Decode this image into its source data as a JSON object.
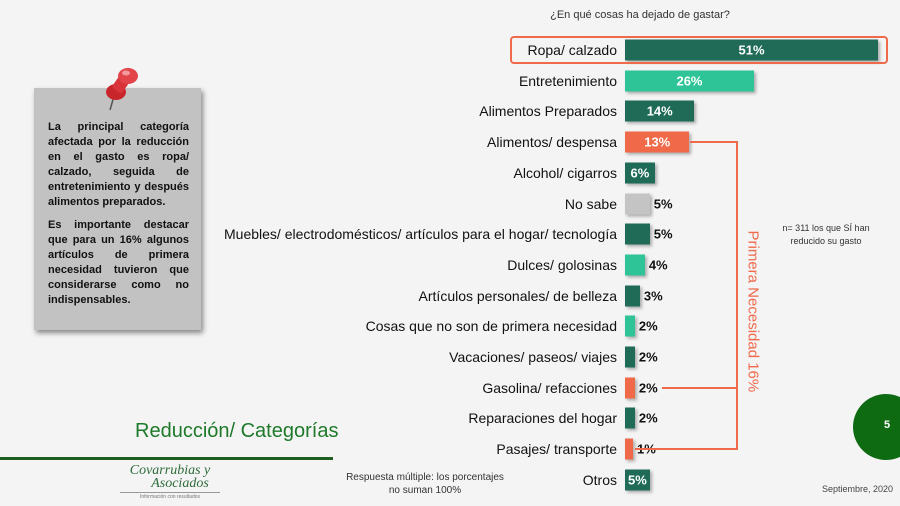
{
  "chart_data": {
    "type": "bar",
    "orientation": "horizontal",
    "title": "¿En qué cosas ha dejado de gastar?",
    "categories": [
      "Ropa/ calzado",
      "Entretenimiento",
      "Alimentos Preparados",
      "Alimentos/ despensa",
      "Alcohol/ cigarros",
      "No sabe",
      "Muebles/ electrodomésticos/ artículos para el hogar/ tecnología",
      "Dulces/ golosinas",
      "Artículos personales/ de belleza",
      "Cosas que no son de primera necesidad",
      "Vacaciones/ paseos/ viajes",
      "Gasolina/ refacciones",
      "Reparaciones del hogar",
      "Pasajes/ transporte",
      "Otros"
    ],
    "values": [
      51,
      26,
      14,
      13,
      6,
      5,
      5,
      4,
      3,
      2,
      2,
      2,
      2,
      1,
      5
    ],
    "value_labels": [
      "51%",
      "26%",
      "14%",
      "13%",
      "6%",
      "5%",
      "5%",
      "4%",
      "3%",
      "2%",
      "2%",
      "2%",
      "2%",
      "1%",
      "5%"
    ],
    "color_groups": [
      "dark",
      "teal",
      "dark",
      "orange",
      "dark",
      "grey",
      "dark",
      "teal",
      "dark",
      "teal",
      "dark",
      "orange",
      "dark",
      "orange",
      "dark"
    ],
    "xlim": [
      0,
      51
    ],
    "grid": false,
    "bracket_label": "Primera Necesidad 16%",
    "sample_note": "n= 311 los que SÍ han reducido su gasto"
  },
  "colors": {
    "dark": "#1f6b58",
    "teal": "#2ec497",
    "orange": "#f06a4a",
    "grey": "#c4c4c4"
  },
  "note": {
    "paragraphs": [
      "La principal categoría afectada por la reducción en el gasto es ropa/ calzado, seguida de entretenimiento y después alimentos preparados.",
      "Es importante destacar que para un 16% algunos artículos de primera necesidad tuvieron que considerarse como no indispensables."
    ]
  },
  "slide_title": "Reducción/ Categorías",
  "logo": {
    "name_line1": "Covarrubias y",
    "name_line2": "Asociados",
    "tagline": "Información con resultados"
  },
  "footnote": "Respuesta múltiple: los porcentajes no suman 100%",
  "date": "Septiembre, 2020",
  "page_number": "5"
}
